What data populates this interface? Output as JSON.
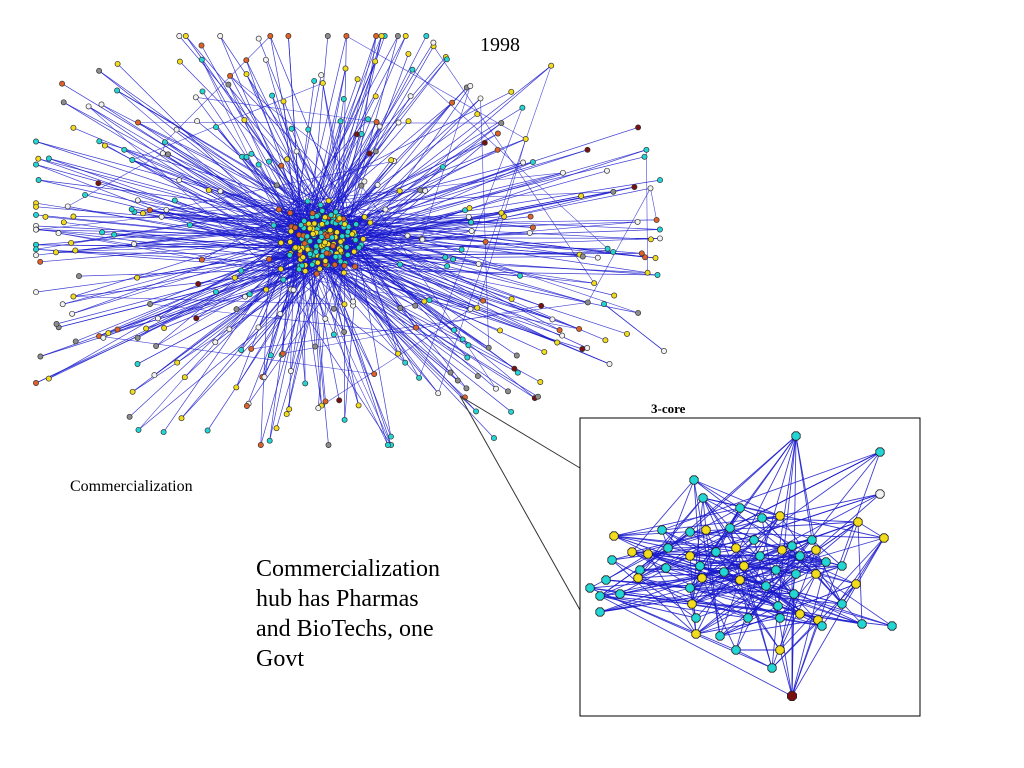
{
  "year_label": "1998",
  "cluster_label": "Commercialization",
  "inset_title": "3-core",
  "caption": {
    "line1": "Commercialization",
    "line2": "hub has Pharmas",
    "line3": "and BioTechs, one",
    "line4": "Govt"
  },
  "colors": {
    "edge": "#1a1acc",
    "node_cyan": "#22d6d6",
    "node_yellow": "#f2dc1c",
    "node_white": "#f2f2f2",
    "node_gray": "#8c8c8c",
    "node_orange": "#e0602a",
    "node_darkred": "#7a1010",
    "inset_border": "#000000"
  }
}
